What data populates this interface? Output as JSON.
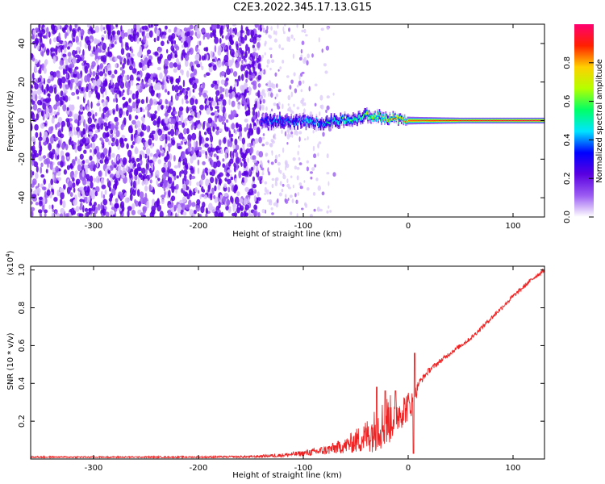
{
  "title": "C2E3.2022.345.17.13.G15",
  "chart_data": [
    {
      "type": "heatmap",
      "xlabel": "Height of straight line (km)",
      "ylabel": "Frequency (Hz)",
      "xlim": [
        -360,
        130
      ],
      "ylim": [
        -50,
        50
      ],
      "xticks": [
        -300,
        -200,
        -100,
        0,
        100
      ],
      "yticks": [
        -40,
        -20,
        0,
        20,
        40
      ],
      "colorbar": {
        "label": "Normalized spectral amplitude",
        "range": [
          0,
          1
        ],
        "ticks": [
          0.0,
          0.2,
          0.4,
          0.6,
          0.8
        ],
        "colormap": [
          "#ffffff",
          "#9b5cf2",
          "#5a00e0",
          "#0000ff",
          "#00e5ff",
          "#00ff66",
          "#b4ff00",
          "#ffd000",
          "#ff2000",
          "#ff0070"
        ]
      },
      "noise_region": {
        "x": [
          -360,
          -140
        ],
        "y": [
          -50,
          50
        ],
        "level": 0.05
      },
      "fading_noise": {
        "x": [
          -140,
          -70
        ],
        "level": 0.02
      },
      "signal_track": [
        {
          "x": -140,
          "f": 0.0,
          "width": 8,
          "level": 0.3
        },
        {
          "x": -120,
          "f": 0.0,
          "width": 6,
          "level": 0.35
        },
        {
          "x": -100,
          "f": -0.5,
          "width": 6,
          "level": 0.4
        },
        {
          "x": -80,
          "f": -1.0,
          "width": 6,
          "level": 0.45
        },
        {
          "x": -60,
          "f": 0.5,
          "width": 6,
          "level": 0.5
        },
        {
          "x": -40,
          "f": 2.5,
          "width": 6,
          "level": 0.6
        },
        {
          "x": -20,
          "f": 1.5,
          "width": 5,
          "level": 0.7
        },
        {
          "x": 0,
          "f": 0.0,
          "width": 4,
          "level": 0.85
        },
        {
          "x": 50,
          "f": 0.0,
          "width": 3,
          "level": 0.9
        },
        {
          "x": 130,
          "f": 0.0,
          "width": 3,
          "level": 0.95
        }
      ]
    },
    {
      "type": "line",
      "xlabel": "Height of straight line (km)",
      "ylabel": "SNR (10 * v/v)",
      "yscale_label": "(x10",
      "yscale_exp": "4",
      "yscale_close": ")",
      "xlim": [
        -360,
        130
      ],
      "ylim": [
        0,
        1.02
      ],
      "xticks": [
        -300,
        -200,
        -100,
        0,
        100
      ],
      "yticks": [
        0.2,
        0.4,
        0.6,
        0.8,
        1.0
      ],
      "color": "#ee2222",
      "series": [
        {
          "x": [
            -360,
            -300,
            -200,
            -150,
            -120,
            -100,
            -80,
            -60,
            -40,
            -30,
            -20,
            -10,
            0,
            5,
            10,
            20,
            40,
            60,
            80,
            100,
            120,
            130
          ],
          "y": [
            0.01,
            0.01,
            0.01,
            0.012,
            0.02,
            0.03,
            0.045,
            0.07,
            0.12,
            0.16,
            0.2,
            0.24,
            0.28,
            0.3,
            0.4,
            0.47,
            0.56,
            0.64,
            0.75,
            0.86,
            0.96,
            1.0
          ],
          "noise": [
            0.004,
            0.004,
            0.004,
            0.006,
            0.01,
            0.015,
            0.025,
            0.04,
            0.09,
            0.12,
            0.14,
            0.1,
            0.08,
            0.06,
            0.02,
            0.015,
            0.012,
            0.012,
            0.012,
            0.012,
            0.012,
            0.012
          ]
        }
      ],
      "spikes": [
        {
          "x": -30,
          "y": 0.38
        },
        {
          "x": -22,
          "y": 0.36
        },
        {
          "x": -12,
          "y": 0.36
        },
        {
          "x": 6,
          "y": 0.56
        },
        {
          "x": 5,
          "y": 0.03
        }
      ]
    }
  ]
}
